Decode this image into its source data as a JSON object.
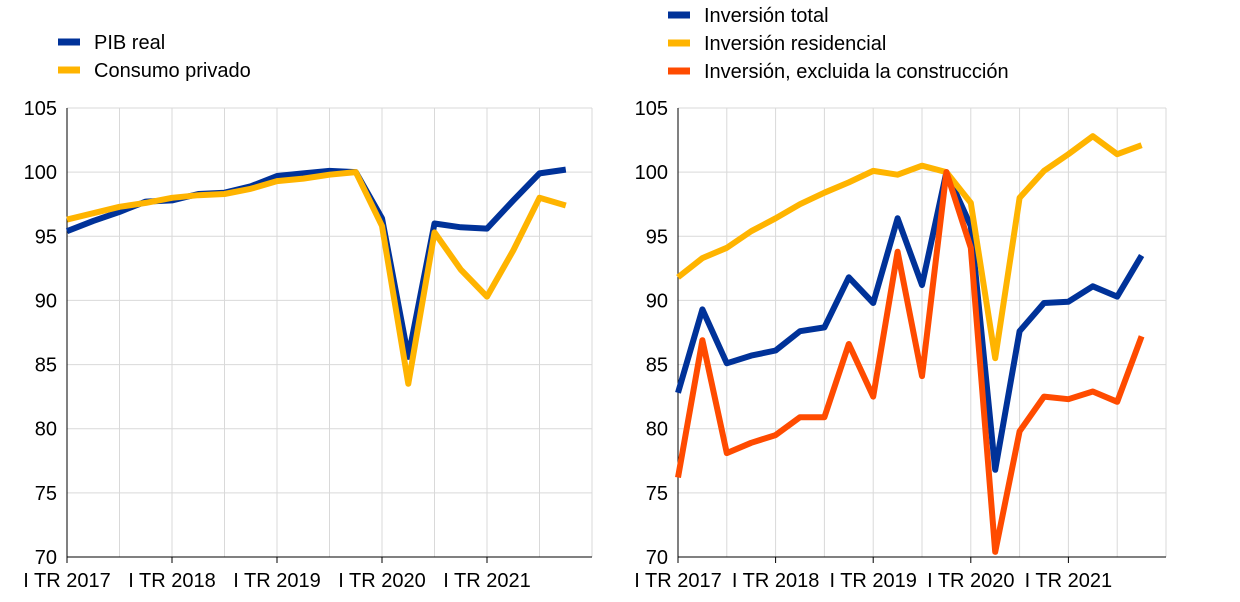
{
  "chart_data": [
    {
      "type": "line",
      "x": [
        "I TR 2017",
        "II TR 2017",
        "III TR 2017",
        "IV TR 2017",
        "I TR 2018",
        "II TR 2018",
        "III TR 2018",
        "IV TR 2018",
        "I TR 2019",
        "II TR 2019",
        "III TR 2019",
        "IV TR 2019",
        "I TR 2020",
        "II TR 2020",
        "III TR 2020",
        "IV TR 2020",
        "I TR 2021",
        "II TR 2021",
        "III TR 2021",
        "IV TR 2021"
      ],
      "xtick_labels": [
        "I TR 2017",
        "I TR 2018",
        "I TR 2019",
        "I TR 2020",
        "I TR 2021"
      ],
      "ylim": [
        70,
        105
      ],
      "yticks": [
        70,
        75,
        80,
        85,
        90,
        95,
        100,
        105
      ],
      "grid": true,
      "legend_placement": "top-left",
      "series": [
        {
          "name": "PIB real",
          "color": "#003299",
          "values": [
            95.4,
            96.2,
            96.9,
            97.7,
            97.8,
            98.3,
            98.4,
            98.9,
            99.7,
            99.9,
            100.1,
            100.0,
            96.4,
            85.6,
            96.0,
            95.7,
            95.6,
            97.8,
            99.9,
            100.2
          ]
        },
        {
          "name": "Consumo privado",
          "color": "#FFB400",
          "values": [
            96.3,
            96.8,
            97.3,
            97.6,
            98.0,
            98.2,
            98.3,
            98.7,
            99.3,
            99.5,
            99.8,
            100.0,
            95.8,
            83.5,
            95.3,
            92.4,
            90.3,
            93.9,
            98.0,
            97.4
          ]
        }
      ]
    },
    {
      "type": "line",
      "x": [
        "I TR 2017",
        "II TR 2017",
        "III TR 2017",
        "IV TR 2017",
        "I TR 2018",
        "II TR 2018",
        "III TR 2018",
        "IV TR 2018",
        "I TR 2019",
        "II TR 2019",
        "III TR 2019",
        "IV TR 2019",
        "I TR 2020",
        "II TR 2020",
        "III TR 2020",
        "IV TR 2020",
        "I TR 2021",
        "II TR 2021",
        "III TR 2021",
        "IV TR 2021"
      ],
      "xtick_labels": [
        "I TR 2017",
        "I TR 2018",
        "I TR 2019",
        "I TR 2020",
        "I TR 2021"
      ],
      "ylim": [
        70,
        105
      ],
      "yticks": [
        70,
        75,
        80,
        85,
        90,
        95,
        100,
        105
      ],
      "grid": true,
      "legend_placement": "top-left",
      "series": [
        {
          "name": "Inversión total",
          "color": "#003299",
          "values": [
            82.8,
            89.3,
            85.1,
            85.7,
            86.1,
            87.6,
            87.9,
            91.8,
            89.8,
            96.4,
            91.2,
            100.0,
            95.8,
            76.8,
            87.6,
            89.8,
            89.9,
            91.1,
            90.3,
            93.5
          ]
        },
        {
          "name": "Inversión residencial",
          "color": "#FFB400",
          "values": [
            91.8,
            93.3,
            94.1,
            95.4,
            96.4,
            97.5,
            98.4,
            99.2,
            100.1,
            99.8,
            100.5,
            100.0,
            97.6,
            85.5,
            98.0,
            100.1,
            101.4,
            102.8,
            101.4,
            102.1
          ]
        },
        {
          "name": "Inversión, excluida la construcción",
          "color": "#FF4B00",
          "values": [
            76.2,
            86.9,
            78.1,
            78.9,
            79.5,
            80.9,
            80.9,
            86.6,
            82.5,
            93.8,
            84.1,
            100.0,
            94.1,
            70.4,
            79.8,
            82.5,
            82.3,
            82.9,
            82.1,
            87.2
          ]
        }
      ]
    }
  ]
}
